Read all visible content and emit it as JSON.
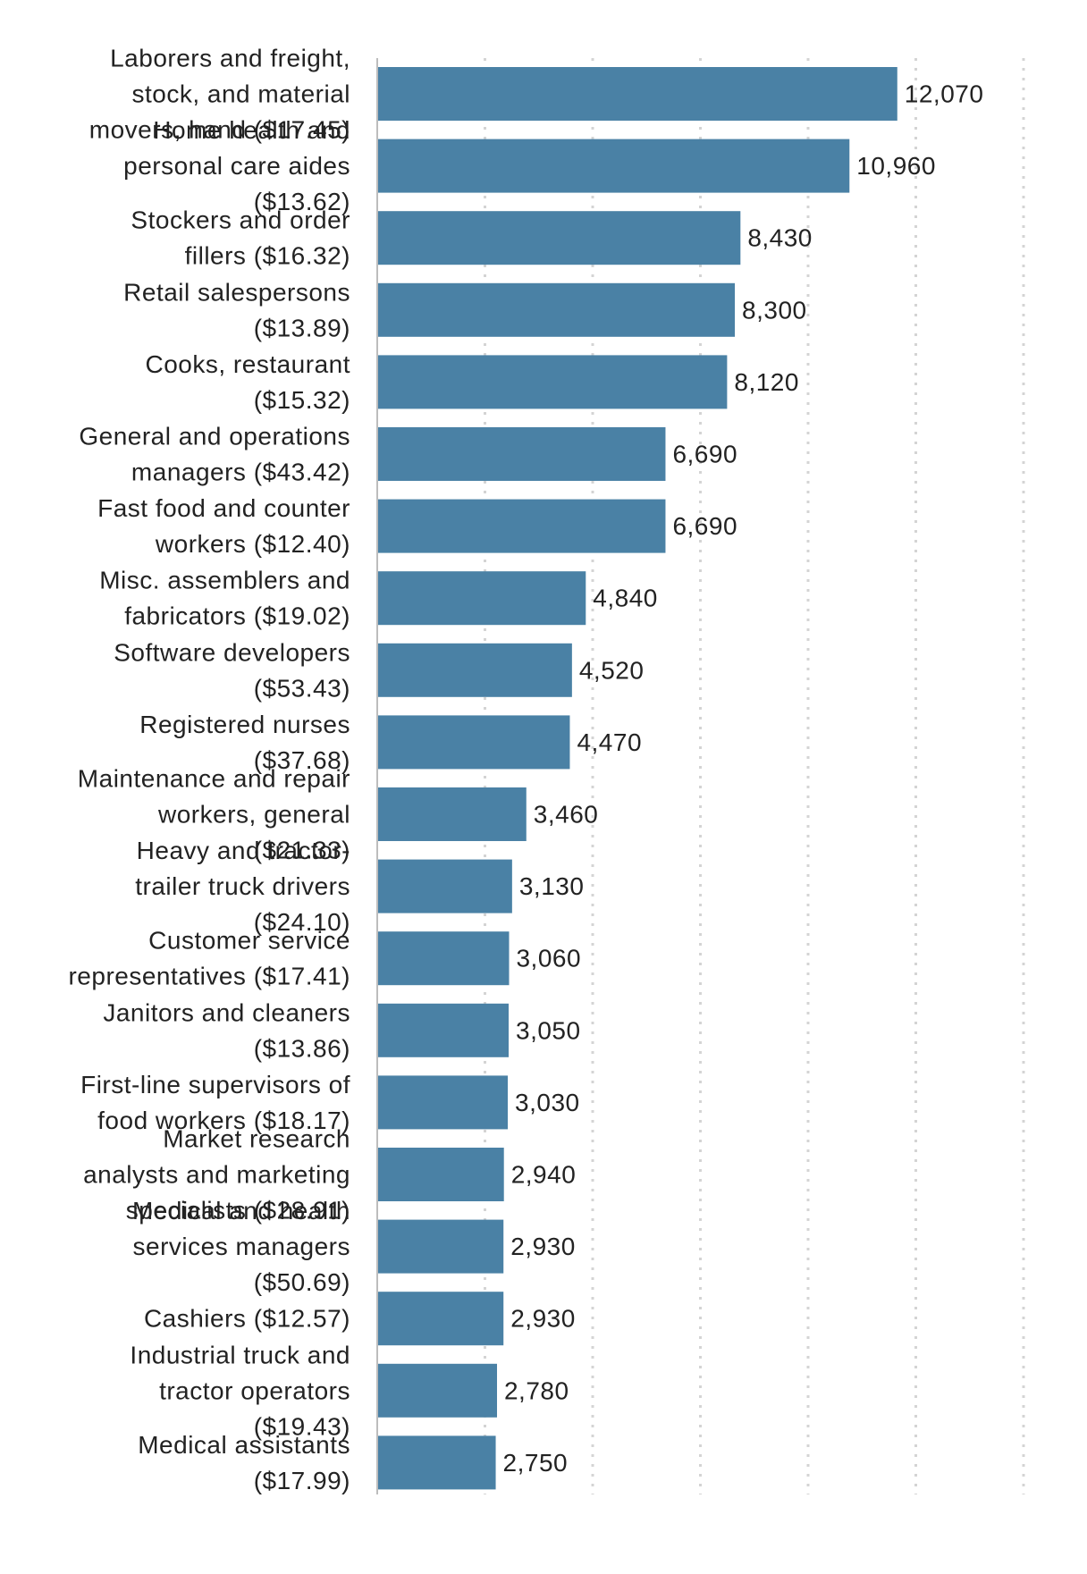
{
  "chart_data": {
    "type": "bar",
    "orientation": "horizontal",
    "categories": [
      "Laborers and freight, stock, and material movers, hand ($17.45)",
      "Home health and personal care aides ($13.62)",
      "Stockers and order fillers ($16.32)",
      "Retail salespersons ($13.89)",
      "Cooks, restaurant ($15.32)",
      "General and operations managers ($43.42)",
      "Fast food and counter workers ($12.40)",
      "Misc. assemblers and fabricators ($19.02)",
      "Software developers ($53.43)",
      "Registered nurses ($37.68)",
      "Maintenance and repair workers, general ($21.33)",
      "Heavy and tractor-trailer truck drivers ($24.10)",
      "Customer service representatives ($17.41)",
      "Janitors and cleaners ($13.86)",
      "First-line supervisors of food workers ($18.17)",
      "Market research analysts and marketing specialists ($28.91)",
      "Medical and health services managers ($50.69)",
      "Cashiers ($12.57)",
      "Industrial truck and tractor operators ($19.43)",
      "Medical assistants ($17.99)"
    ],
    "values": [
      12070,
      10960,
      8430,
      8300,
      8120,
      6690,
      6690,
      4840,
      4520,
      4470,
      3460,
      3130,
      3060,
      3050,
      3030,
      2940,
      2930,
      2930,
      2780,
      2750
    ],
    "value_labels": [
      "12,070",
      "10,960",
      "8,430",
      "8,300",
      "8,120",
      "6,690",
      "6,690",
      "4,840",
      "4,520",
      "4,470",
      "3,460",
      "3,130",
      "3,060",
      "3,050",
      "3,030",
      "2,940",
      "2,930",
      "2,930",
      "2,780",
      "2,750"
    ],
    "label_lines": [
      [
        "Laborers and freight,",
        "stock, and material",
        "movers, hand ($17.45)"
      ],
      [
        "Home health and",
        "personal care aides",
        "($13.62)"
      ],
      [
        "Stockers and order",
        "fillers ($16.32)"
      ],
      [
        "Retail salespersons",
        "($13.89)"
      ],
      [
        "Cooks, restaurant",
        "($15.32)"
      ],
      [
        "General and operations",
        "managers ($43.42)"
      ],
      [
        "Fast food and counter",
        "workers ($12.40)"
      ],
      [
        "Misc. assemblers and",
        "fabricators ($19.02)"
      ],
      [
        "Software developers",
        "($53.43)"
      ],
      [
        "Registered nurses",
        "($37.68)"
      ],
      [
        "Maintenance and repair",
        "workers, general",
        "($21.33)"
      ],
      [
        "Heavy and tractor-",
        "trailer truck drivers",
        "($24.10)"
      ],
      [
        "Customer service",
        "representatives ($17.41)"
      ],
      [
        "Janitors and cleaners",
        "($13.86)"
      ],
      [
        "First-line supervisors of",
        "food workers ($18.17)"
      ],
      [
        "Market research",
        "analysts and marketing",
        "specialists ($28.91)"
      ],
      [
        "Medical and health",
        "services managers",
        "($50.69)"
      ],
      [
        "Cashiers ($12.57)"
      ],
      [
        "Industrial truck and",
        "tractor operators",
        "($19.43)"
      ],
      [
        "Medical assistants",
        "($17.99)"
      ]
    ],
    "xlim": [
      0,
      15000
    ],
    "grid": true,
    "gridline_values": [
      2500,
      5000,
      7500,
      10000,
      12500,
      15000
    ],
    "colors": {
      "bar": "#4a81a5",
      "text": "#222222",
      "grid": "#d4d4d4",
      "axis": "#bdbdbd"
    },
    "title": "",
    "xlabel": "",
    "ylabel": ""
  }
}
